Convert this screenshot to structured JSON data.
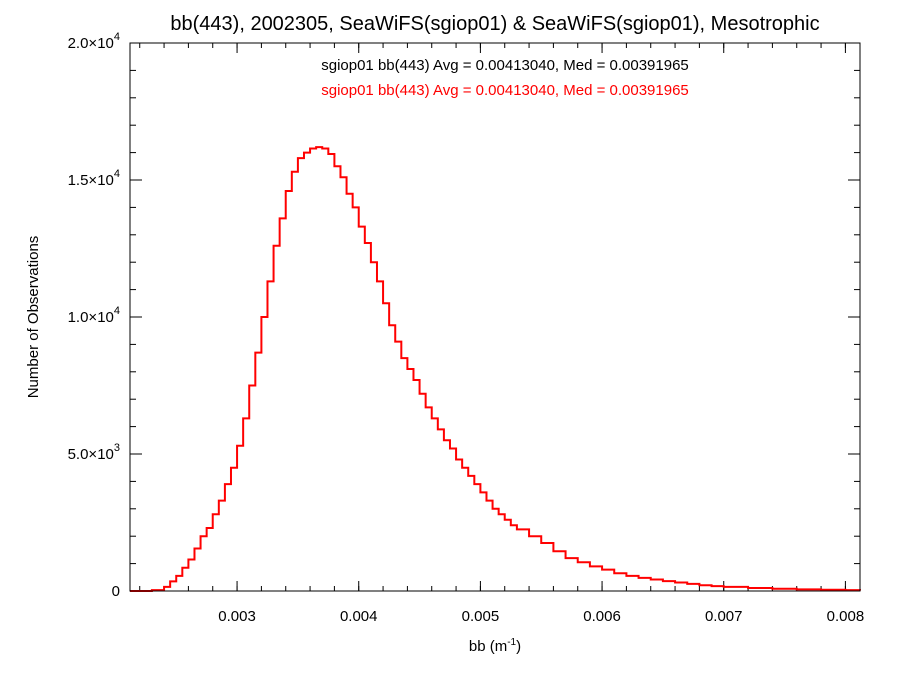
{
  "chart_data": {
    "type": "line",
    "title": "bb(443), 2002305, SeaWiFS(sgiop01) & SeaWiFS(sgiop01), Mesotrophic",
    "xlabel": "bb (m",
    "xlabel_sup": "-1",
    "xlabel_close": ")",
    "ylabel": "Number of Observations",
    "xlim": [
      0.00212,
      0.00812
    ],
    "ylim": [
      0,
      20000
    ],
    "x_ticks": [
      {
        "value": 0.003,
        "label": "0.003"
      },
      {
        "value": 0.004,
        "label": "0.004"
      },
      {
        "value": 0.005,
        "label": "0.005"
      },
      {
        "value": 0.006,
        "label": "0.006"
      },
      {
        "value": 0.007,
        "label": "0.007"
      },
      {
        "value": 0.008,
        "label": "0.008"
      }
    ],
    "y_ticks": [
      {
        "value": 0,
        "mant": "0",
        "exp": ""
      },
      {
        "value": 5000,
        "mant": "5.0×10",
        "exp": "3"
      },
      {
        "value": 10000,
        "mant": "1.0×10",
        "exp": "4"
      },
      {
        "value": 15000,
        "mant": "1.5×10",
        "exp": "4"
      },
      {
        "value": 20000,
        "mant": "2.0×10",
        "exp": "4"
      }
    ],
    "annotations": [
      {
        "text": "sgiop01 bb(443) Avg = 0.00413040, Med = 0.00391965",
        "color": "#000000"
      },
      {
        "text": "sgiop01 bb(443) Avg = 0.00413040, Med = 0.00391965",
        "color": "#ff0000"
      }
    ],
    "grid": false,
    "series": [
      {
        "color": "#ff0000",
        "step": true,
        "points": [
          [
            0.00212,
            0
          ],
          [
            0.0023,
            30
          ],
          [
            0.0024,
            150
          ],
          [
            0.00245,
            350
          ],
          [
            0.0025,
            550
          ],
          [
            0.00255,
            850
          ],
          [
            0.0026,
            1150
          ],
          [
            0.00265,
            1550
          ],
          [
            0.0027,
            2000
          ],
          [
            0.00275,
            2300
          ],
          [
            0.0028,
            2800
          ],
          [
            0.00285,
            3300
          ],
          [
            0.0029,
            3900
          ],
          [
            0.00295,
            4500
          ],
          [
            0.003,
            5300
          ],
          [
            0.00305,
            6300
          ],
          [
            0.0031,
            7500
          ],
          [
            0.00315,
            8700
          ],
          [
            0.0032,
            10000
          ],
          [
            0.00325,
            11300
          ],
          [
            0.0033,
            12600
          ],
          [
            0.00335,
            13600
          ],
          [
            0.0034,
            14600
          ],
          [
            0.00345,
            15300
          ],
          [
            0.0035,
            15800
          ],
          [
            0.00355,
            16000
          ],
          [
            0.0036,
            16150
          ],
          [
            0.00365,
            16200
          ],
          [
            0.0037,
            16150
          ],
          [
            0.00375,
            15950
          ],
          [
            0.0038,
            15500
          ],
          [
            0.00385,
            15100
          ],
          [
            0.0039,
            14500
          ],
          [
            0.00395,
            14000
          ],
          [
            0.004,
            13300
          ],
          [
            0.00405,
            12700
          ],
          [
            0.0041,
            12000
          ],
          [
            0.00415,
            11300
          ],
          [
            0.0042,
            10500
          ],
          [
            0.00425,
            9700
          ],
          [
            0.0043,
            9100
          ],
          [
            0.00435,
            8500
          ],
          [
            0.0044,
            8100
          ],
          [
            0.00445,
            7700
          ],
          [
            0.0045,
            7200
          ],
          [
            0.00455,
            6700
          ],
          [
            0.0046,
            6300
          ],
          [
            0.00465,
            5900
          ],
          [
            0.0047,
            5500
          ],
          [
            0.00475,
            5200
          ],
          [
            0.0048,
            4800
          ],
          [
            0.00485,
            4500
          ],
          [
            0.0049,
            4200
          ],
          [
            0.00495,
            3900
          ],
          [
            0.005,
            3600
          ],
          [
            0.00505,
            3300
          ],
          [
            0.0051,
            3000
          ],
          [
            0.00515,
            2800
          ],
          [
            0.0052,
            2600
          ],
          [
            0.00525,
            2400
          ],
          [
            0.0053,
            2250
          ],
          [
            0.0054,
            2000
          ],
          [
            0.0055,
            1750
          ],
          [
            0.0056,
            1450
          ],
          [
            0.0057,
            1200
          ],
          [
            0.0058,
            1050
          ],
          [
            0.0059,
            900
          ],
          [
            0.006,
            780
          ],
          [
            0.0061,
            650
          ],
          [
            0.0062,
            550
          ],
          [
            0.0063,
            480
          ],
          [
            0.0064,
            420
          ],
          [
            0.0065,
            360
          ],
          [
            0.0066,
            310
          ],
          [
            0.0067,
            260
          ],
          [
            0.0068,
            210
          ],
          [
            0.0069,
            180
          ],
          [
            0.007,
            150
          ],
          [
            0.0072,
            110
          ],
          [
            0.0074,
            80
          ],
          [
            0.0076,
            60
          ],
          [
            0.0078,
            45
          ],
          [
            0.008,
            30
          ],
          [
            0.00812,
            20
          ]
        ]
      }
    ]
  }
}
